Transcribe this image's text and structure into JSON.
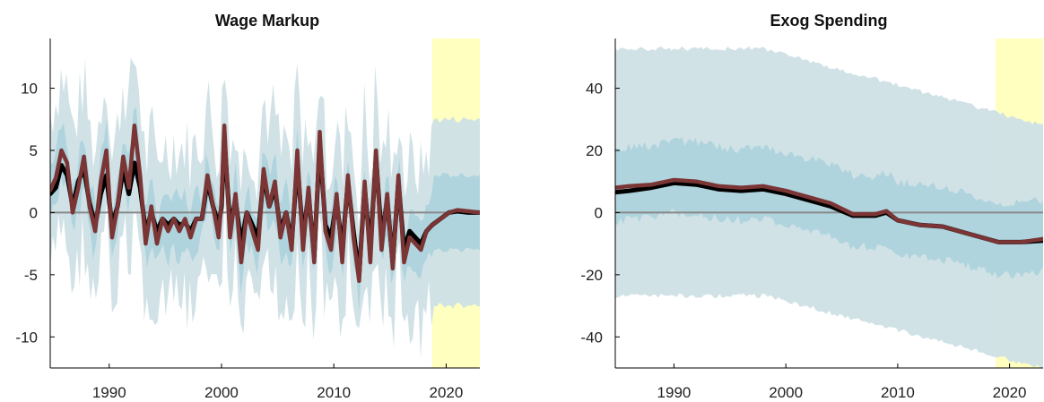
{
  "chart_data": [
    {
      "type": "line",
      "title": "Wage Markup",
      "xlim": [
        1984.75,
        2023
      ],
      "ylim": [
        -12.5,
        14
      ],
      "xticks": [
        1990,
        2000,
        2010,
        2020
      ],
      "xtick_labels": [
        "1990",
        "2000",
        "2010",
        "2020"
      ],
      "yticks": [
        10,
        5,
        0,
        -5,
        -10
      ],
      "ytick_labels": [
        "10",
        "5",
        "0",
        "-5",
        "-10"
      ],
      "forecast_region": [
        2018.75,
        2023
      ],
      "zero_line": 0,
      "colors": {
        "outer_band": "#cfe0e6",
        "inner_band": "#a9d1dc",
        "forecast_shade": "#ffffbf",
        "series_black": "#000000",
        "series_red": "#7b3535",
        "zero_line": "#888888"
      },
      "series": [
        {
          "color": "#000000",
          "x": [
            1984.75,
            1985.25,
            1985.75,
            1986.25,
            1986.75,
            1987.25,
            1987.75,
            1988.25,
            1988.75,
            1989.25,
            1989.75,
            1990.25,
            1990.75,
            1991.25,
            1991.75,
            1992.25,
            1992.75,
            1993.25,
            1993.75,
            1994.25,
            1994.75,
            1995.25,
            1995.75,
            1996.25,
            1996.75,
            1997.25,
            1997.75,
            1998.25,
            1998.75,
            1999.25,
            1999.75,
            2000.0,
            2000.25,
            2000.75,
            2001.25,
            2001.75,
            2002.25,
            2002.75,
            2003.25,
            2003.75,
            2004.25,
            2004.75,
            2005.25,
            2005.75,
            2006.25,
            2006.75,
            2007.25,
            2007.75,
            2008.25,
            2008.75,
            2009.25,
            2009.75,
            2010.25,
            2010.75,
            2011.25,
            2011.75,
            2012.25,
            2012.75,
            2013.25,
            2013.75,
            2014.25,
            2014.75,
            2015.25,
            2015.75,
            2016.25,
            2016.75,
            2017.25,
            2017.75,
            2018.25,
            2018.75,
            2019.5,
            2020.25,
            2021,
            2022,
            2023
          ],
          "y": [
            1.5,
            2.0,
            3.8,
            3.0,
            0.5,
            2.5,
            3.5,
            0.8,
            -1.0,
            1.5,
            3.0,
            -1.0,
            0.5,
            3.5,
            1.5,
            4.0,
            2.0,
            -1.5,
            0.0,
            -1.5,
            -0.5,
            -1.0,
            -0.5,
            -1.0,
            -0.8,
            -1.5,
            -0.5,
            -0.5,
            2.5,
            0.5,
            -1.0,
            0.5,
            6.0,
            -1.0,
            1.0,
            -2.5,
            0.0,
            -1.0,
            -2.0,
            3.0,
            0.5,
            2.0,
            -1.5,
            0.0,
            -2.5,
            4.0,
            -2.0,
            1.5,
            -3.5,
            5.5,
            -1.0,
            -2.0,
            1.0,
            -3.0,
            2.5,
            -1.5,
            -5.0,
            2.0,
            -3.0,
            4.5,
            -2.0,
            1.0,
            -4.0,
            2.5,
            -3.0,
            -1.5,
            -2.0,
            -2.5,
            -1.5,
            -1.0,
            -0.5,
            0.0,
            0.1,
            0.0,
            0.0
          ]
        },
        {
          "color": "#7b3535",
          "x": [
            1984.75,
            1985.25,
            1985.75,
            1986.25,
            1986.75,
            1987.25,
            1987.75,
            1988.25,
            1988.75,
            1989.25,
            1989.75,
            1990.25,
            1990.75,
            1991.25,
            1991.75,
            1992.25,
            1992.75,
            1993.25,
            1993.75,
            1994.25,
            1994.75,
            1995.25,
            1995.75,
            1996.25,
            1996.75,
            1997.25,
            1997.75,
            1998.25,
            1998.75,
            1999.25,
            1999.75,
            2000.0,
            2000.25,
            2000.75,
            2001.25,
            2001.75,
            2002.25,
            2002.75,
            2003.25,
            2003.75,
            2004.25,
            2004.75,
            2005.25,
            2005.75,
            2006.25,
            2006.75,
            2007.25,
            2007.75,
            2008.25,
            2008.75,
            2009.25,
            2009.75,
            2010.25,
            2010.75,
            2011.25,
            2011.75,
            2012.25,
            2012.75,
            2013.25,
            2013.75,
            2014.25,
            2014.75,
            2015.25,
            2015.75,
            2016.25,
            2016.75,
            2017.25,
            2017.75,
            2018.25,
            2018.75,
            2019.5,
            2020.25,
            2021,
            2022,
            2023
          ],
          "y": [
            1.8,
            2.8,
            5.0,
            4.0,
            0.0,
            2.0,
            4.5,
            0.5,
            -1.5,
            2.5,
            5.0,
            -2.0,
            0.5,
            4.5,
            2.0,
            7.0,
            3.0,
            -2.5,
            0.5,
            -2.5,
            -0.5,
            -1.5,
            -0.5,
            -1.5,
            -0.5,
            -2.0,
            -0.5,
            -0.5,
            3.0,
            0.5,
            -2.0,
            1.0,
            7.0,
            -2.0,
            1.5,
            -4.0,
            0.0,
            -1.5,
            -3.0,
            3.5,
            0.5,
            2.5,
            -2.0,
            0.0,
            -3.0,
            5.0,
            -3.0,
            2.0,
            -4.0,
            6.5,
            -1.5,
            -3.0,
            1.5,
            -4.0,
            3.0,
            -2.0,
            -5.5,
            2.5,
            -4.0,
            5.0,
            -3.0,
            1.5,
            -4.5,
            3.0,
            -4.0,
            -2.0,
            -2.5,
            -3.0,
            -1.5,
            -1.0,
            -0.5,
            0.0,
            0.2,
            0.1,
            0.0
          ]
        }
      ]
    },
    {
      "type": "line",
      "title": "Exog Spending",
      "xlim": [
        1984.75,
        2023
      ],
      "ylim": [
        -50,
        56
      ],
      "xticks": [
        1990,
        2000,
        2010,
        2020
      ],
      "xtick_labels": [
        "1990",
        "2000",
        "2010",
        "2020"
      ],
      "yticks": [
        40,
        20,
        0,
        -20,
        -40
      ],
      "ytick_labels": [
        "40",
        "20",
        "0",
        "-20",
        "-40"
      ],
      "forecast_region": [
        2018.75,
        2023
      ],
      "zero_line": 0,
      "colors": {
        "outer_band": "#cfe0e6",
        "inner_band": "#a9d1dc",
        "forecast_shade": "#ffffbf",
        "series_black": "#000000",
        "series_red": "#7b3535",
        "zero_line": "#888888"
      },
      "series": [
        {
          "color": "#000000",
          "x": [
            1984.75,
            1986,
            1988,
            1990,
            1992,
            1994,
            1996,
            1998,
            2000,
            2002,
            2004,
            2006,
            2008,
            2009,
            2010,
            2012,
            2014,
            2016,
            2018,
            2019,
            2021,
            2023
          ],
          "y": [
            6.5,
            7.0,
            8.0,
            9.5,
            9.0,
            7.5,
            7.0,
            7.5,
            6.0,
            4.0,
            2.0,
            -1.0,
            -1.0,
            0.0,
            -2.5,
            -4.0,
            -4.5,
            -6.5,
            -8.5,
            -9.5,
            -9.5,
            -9.0
          ]
        },
        {
          "color": "#7b3535",
          "x": [
            1984.75,
            1986,
            1988,
            1990,
            1992,
            1994,
            1996,
            1998,
            2000,
            2002,
            2004,
            2006,
            2008,
            2009,
            2010,
            2012,
            2014,
            2016,
            2018,
            2019,
            2021,
            2023
          ],
          "y": [
            8.0,
            8.5,
            9.0,
            10.5,
            10.0,
            8.5,
            8.0,
            8.5,
            7.0,
            5.0,
            3.0,
            -0.5,
            -0.5,
            0.5,
            -2.5,
            -4.0,
            -4.5,
            -6.5,
            -8.5,
            -9.5,
            -9.5,
            -8.5
          ]
        }
      ]
    }
  ]
}
